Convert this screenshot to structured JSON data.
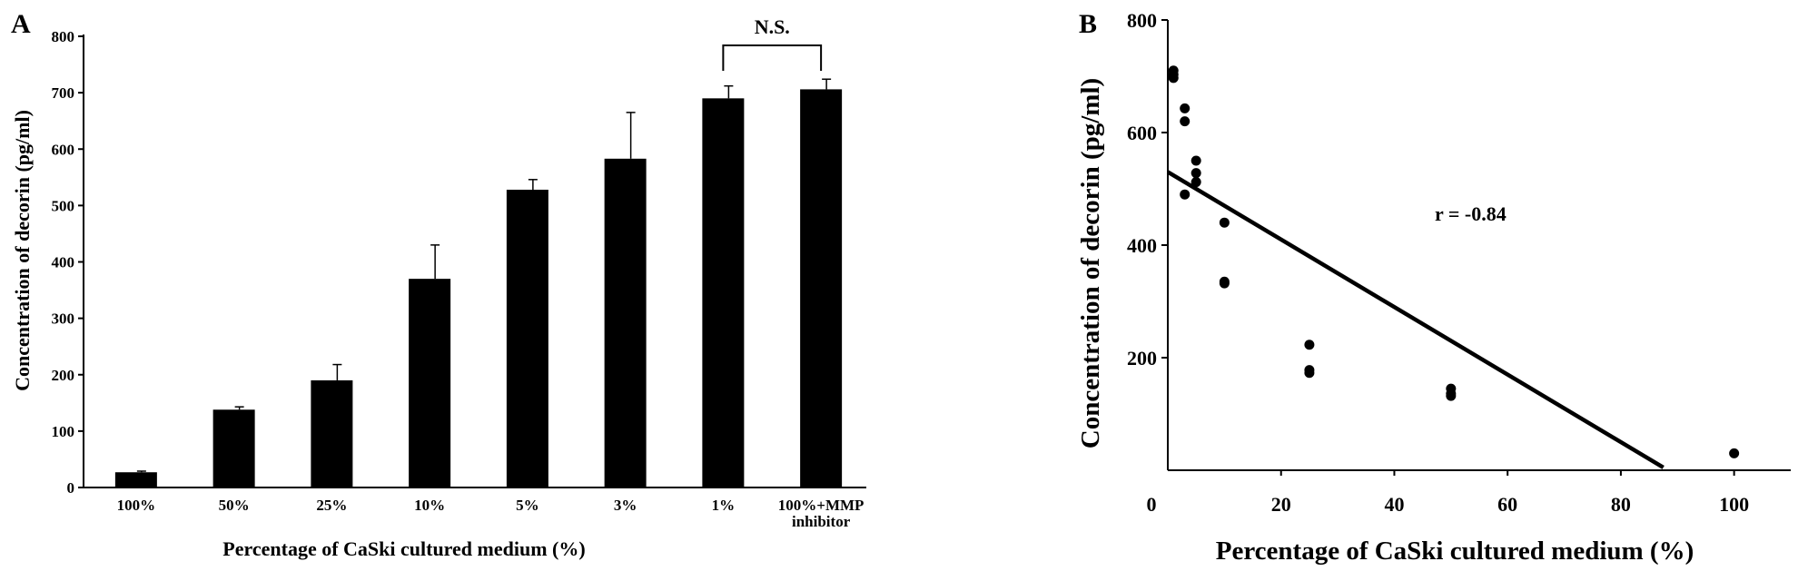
{
  "chart_data": [
    {
      "panel": "A",
      "type": "bar",
      "categories": [
        "100%",
        "50%",
        "25%",
        "10%",
        "5%",
        "3%",
        "1%",
        "100%+MMP inhibitor"
      ],
      "category_lines": [
        [
          "100%"
        ],
        [
          "50%"
        ],
        [
          "25%"
        ],
        [
          "10%"
        ],
        [
          "5%"
        ],
        [
          "3%"
        ],
        [
          "1%"
        ],
        [
          "100%+MMP",
          "inhibitor"
        ]
      ],
      "values": [
        27,
        138,
        190,
        370,
        528,
        583,
        690,
        706
      ],
      "errors": [
        2,
        5,
        28,
        60,
        18,
        82,
        22,
        18
      ],
      "xlabel": "Percentage of CaSki cultured medium (%)",
      "ylabel": "Concentration of decorin (pg/ml)",
      "ylim": [
        0,
        800
      ],
      "yticks": [
        "0",
        "100",
        "200",
        "300",
        "400",
        "500",
        "600",
        "700",
        "800"
      ],
      "annotation": {
        "text": "N.S.",
        "between": [
          "1%",
          "100%+MMP inhibitor"
        ]
      },
      "bar_color": "#000000",
      "grid": false
    },
    {
      "panel": "B",
      "type": "scatter",
      "points": [
        {
          "x": 1,
          "y": 697
        },
        {
          "x": 1,
          "y": 703
        },
        {
          "x": 1,
          "y": 710
        },
        {
          "x": 3,
          "y": 643
        },
        {
          "x": 3,
          "y": 620
        },
        {
          "x": 3,
          "y": 490
        },
        {
          "x": 5,
          "y": 550
        },
        {
          "x": 5,
          "y": 528
        },
        {
          "x": 5,
          "y": 512
        },
        {
          "x": 10,
          "y": 440
        },
        {
          "x": 10,
          "y": 335
        },
        {
          "x": 10,
          "y": 332
        },
        {
          "x": 25,
          "y": 223
        },
        {
          "x": 25,
          "y": 178
        },
        {
          "x": 25,
          "y": 173
        },
        {
          "x": 50,
          "y": 145
        },
        {
          "x": 50,
          "y": 136
        },
        {
          "x": 50,
          "y": 132
        },
        {
          "x": 100,
          "y": 30
        }
      ],
      "trendline": {
        "x": [
          0,
          87.5
        ],
        "y": [
          530,
          5
        ]
      },
      "annotation": "r = -0.84",
      "xlabel": "Percentage of CaSki cultured medium (%)",
      "ylabel": "Concentration of decorin (pg/ml)",
      "xlim": [
        0,
        110
      ],
      "ylim": [
        0,
        800
      ],
      "xticks": [
        "0",
        "20",
        "40",
        "60",
        "80",
        "100"
      ],
      "yticks": [
        "200",
        "400",
        "600",
        "800"
      ],
      "marker_color": "#000000",
      "grid": false
    }
  ],
  "panels": {
    "a_label": "A",
    "b_label": "B"
  }
}
